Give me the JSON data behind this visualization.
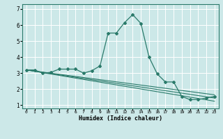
{
  "xlabel": "Humidex (Indice chaleur)",
  "bg_color": "#cce8e8",
  "grid_color": "#ffffff",
  "line_color": "#2a7a6a",
  "xlim": [
    -0.5,
    23.5
  ],
  "ylim": [
    0.8,
    7.3
  ],
  "xticks": [
    0,
    1,
    2,
    3,
    4,
    5,
    6,
    7,
    8,
    9,
    10,
    11,
    12,
    13,
    14,
    15,
    16,
    17,
    18,
    19,
    20,
    21,
    22,
    23
  ],
  "yticks": [
    1,
    2,
    3,
    4,
    5,
    6,
    7
  ],
  "series_main": {
    "x": [
      0,
      1,
      2,
      3,
      4,
      5,
      6,
      7,
      8,
      9,
      10,
      11,
      12,
      13,
      14,
      15,
      16,
      17,
      18,
      19,
      20,
      21,
      22,
      23
    ],
    "y": [
      3.2,
      3.2,
      3.0,
      3.05,
      3.25,
      3.25,
      3.25,
      3.0,
      3.15,
      3.45,
      5.5,
      5.5,
      6.15,
      6.65,
      6.1,
      4.0,
      2.95,
      2.45,
      2.45,
      1.55,
      1.35,
      1.35,
      1.45,
      1.55
    ]
  },
  "series_linear": [
    {
      "x": [
        0,
        23
      ],
      "y": [
        3.2,
        1.65
      ]
    },
    {
      "x": [
        0,
        23
      ],
      "y": [
        3.2,
        1.45
      ]
    },
    {
      "x": [
        0,
        23
      ],
      "y": [
        3.2,
        1.25
      ]
    }
  ]
}
